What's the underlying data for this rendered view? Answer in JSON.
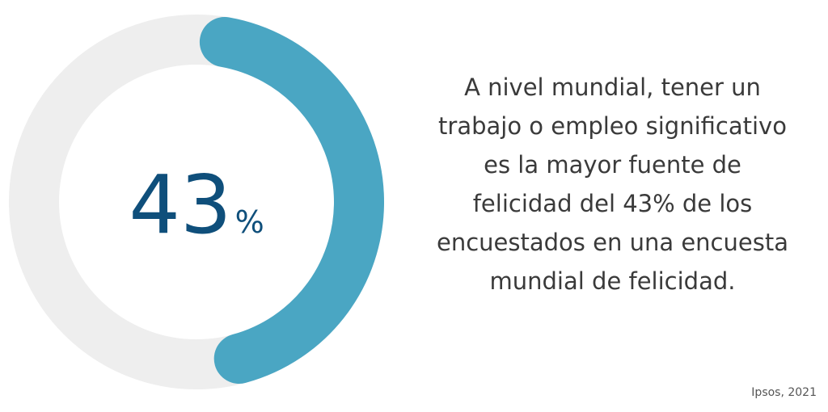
{
  "chart_data": {
    "type": "donut",
    "values": [
      43
    ],
    "value_labels": [
      "43%"
    ],
    "max": 100,
    "color": "#4aa6c3",
    "track_color": "#eeeeee",
    "description": "A nivel mundial, tener un trabajo o empleo significativo es la mayor fuente de felicidad del 43% de los encuestados en una encuesta mundial de felicidad.",
    "source": "Ipsos, 2021"
  }
}
